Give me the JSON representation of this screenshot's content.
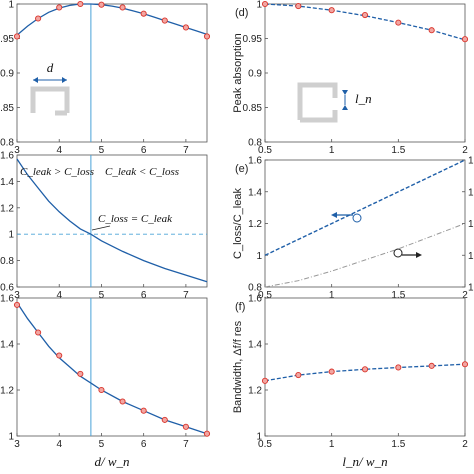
{
  "chart_data": [
    {
      "id": "a",
      "type": "line",
      "panel_label": "",
      "xlim": [
        3,
        7.5
      ],
      "ylim": [
        0.8,
        1.0
      ],
      "xticks": [
        "3",
        "4",
        "5",
        "6",
        "7"
      ],
      "yticks": [
        "0.8",
        "0.85",
        "0.9",
        "0.95",
        "1"
      ],
      "ylabel": "",
      "xlabel": "",
      "vline_x": 4.75,
      "curve": {
        "x": [
          3,
          3.25,
          3.5,
          3.75,
          4,
          4.25,
          4.5,
          4.75,
          5,
          5.25,
          5.5,
          5.75,
          6,
          6.25,
          6.5,
          6.75,
          7,
          7.25,
          7.5
        ],
        "y": [
          0.955,
          0.968,
          0.979,
          0.988,
          0.994,
          0.998,
          1.0,
          1.0,
          0.999,
          0.997,
          0.994,
          0.99,
          0.986,
          0.981,
          0.976,
          0.971,
          0.966,
          0.961,
          0.956
        ]
      },
      "markers": {
        "x": [
          3,
          3.5,
          4,
          4.5,
          5,
          5.5,
          6,
          6.5,
          7,
          7.5
        ],
        "y": [
          0.953,
          0.979,
          0.995,
          1.0,
          0.999,
          0.995,
          0.986,
          0.976,
          0.966,
          0.953
        ]
      },
      "annotations": {
        "d": "d"
      }
    },
    {
      "id": "b",
      "type": "line",
      "panel_label": "",
      "xlim": [
        3,
        7.5
      ],
      "ylim": [
        0.6,
        1.6
      ],
      "xticks": [
        "3",
        "4",
        "5",
        "6",
        "7"
      ],
      "yticks": [
        "0.6",
        "0.8",
        "1",
        "1.2",
        "1.4",
        "1.6"
      ],
      "vline_x": 4.75,
      "hline_y": 1.0,
      "curve": {
        "x": [
          3,
          3.25,
          3.5,
          3.75,
          4,
          4.25,
          4.5,
          4.75,
          5,
          5.5,
          6,
          6.5,
          7,
          7.5
        ],
        "y": [
          1.57,
          1.45,
          1.35,
          1.25,
          1.17,
          1.1,
          1.04,
          1.0,
          0.95,
          0.87,
          0.8,
          0.74,
          0.69,
          0.64
        ]
      },
      "annotations": {
        "left": "C_leak > C_loss",
        "right": "C_leak < C_loss",
        "mid": "C_loss = C_leak"
      }
    },
    {
      "id": "c",
      "type": "line",
      "panel_label": "",
      "xlim": [
        3,
        7.5
      ],
      "ylim": [
        1.0,
        1.6
      ],
      "xticks": [
        "3",
        "4",
        "5",
        "6",
        "7"
      ],
      "yticks": [
        "1",
        "1.2",
        "1.4",
        "1.6"
      ],
      "xlabel": "d/ w_n",
      "vline_x": 4.75,
      "curve": {
        "x": [
          3,
          3.25,
          3.5,
          3.75,
          4,
          4.25,
          4.5,
          4.75,
          5,
          5.5,
          6,
          6.5,
          7,
          7.5
        ],
        "y": [
          1.58,
          1.51,
          1.45,
          1.39,
          1.34,
          1.3,
          1.26,
          1.23,
          1.2,
          1.15,
          1.11,
          1.07,
          1.04,
          1.01
        ]
      },
      "markers": {
        "x": [
          3,
          3.5,
          4,
          4.5,
          5,
          5.5,
          6,
          6.5,
          7,
          7.5
        ],
        "y": [
          1.57,
          1.45,
          1.35,
          1.27,
          1.2,
          1.15,
          1.11,
          1.07,
          1.04,
          1.01
        ]
      }
    },
    {
      "id": "d",
      "type": "line",
      "panel_label": "(d)",
      "xlim": [
        0.5,
        2.0
      ],
      "ylim": [
        0.8,
        1.0
      ],
      "xticks": [
        "0.5",
        "1",
        "1.5",
        "2"
      ],
      "yticks": [
        "0.8",
        "0.85",
        "0.9",
        "0.95",
        "1"
      ],
      "ylabel": "Peak absorption",
      "curve": {
        "x": [
          0.5,
          0.75,
          1.0,
          1.25,
          1.5,
          1.75,
          2.0
        ],
        "y": [
          1.0,
          0.997,
          0.991,
          0.983,
          0.973,
          0.962,
          0.948
        ]
      },
      "markers": {
        "x": [
          0.5,
          0.75,
          1.0,
          1.25,
          1.5,
          1.75,
          2.0
        ],
        "y": [
          1.0,
          0.997,
          0.991,
          0.984,
          0.973,
          0.962,
          0.949
        ]
      },
      "annotations": {
        "ln": "l_n"
      }
    },
    {
      "id": "e",
      "type": "line",
      "panel_label": "(e)",
      "xlim": [
        0.5,
        2.0
      ],
      "ylim": [
        0.8,
        1.6
      ],
      "xticks": [
        "0.5",
        "1",
        "1.5",
        "2"
      ],
      "yticks": [
        "0.8",
        "1",
        "1.2",
        "1.4",
        "1.6"
      ],
      "right_yticks": [
        "1",
        "1",
        "1",
        "1",
        "1"
      ],
      "ylabel": "C_loss/C_leak",
      "series": [
        {
          "style": "dashed-blue",
          "x": [
            0.5,
            2.0
          ],
          "y": [
            1.0,
            1.6
          ]
        },
        {
          "style": "dashdot-gray",
          "x": [
            0.5,
            0.75,
            1.0,
            1.25,
            1.5,
            1.75,
            2.0
          ],
          "y": [
            0.8,
            0.84,
            0.9,
            0.97,
            1.04,
            1.12,
            1.2
          ]
        }
      ]
    },
    {
      "id": "f",
      "type": "line",
      "panel_label": "(f)",
      "xlim": [
        0.5,
        2.0
      ],
      "ylim": [
        1.0,
        1.6
      ],
      "xticks": [
        "0.5",
        "1",
        "1.5",
        "2"
      ],
      "yticks": [
        "1",
        "1.2",
        "1.4",
        "1.6"
      ],
      "ylabel": "Bandwidth, Δf/f res",
      "xlabel": "l_n/ w_n",
      "curve": {
        "x": [
          0.5,
          0.75,
          1.0,
          1.25,
          1.5,
          1.75,
          2.0
        ],
        "y": [
          1.24,
          1.265,
          1.28,
          1.29,
          1.298,
          1.305,
          1.312
        ]
      },
      "markers": {
        "x": [
          0.5,
          0.75,
          1.0,
          1.25,
          1.5,
          1.75,
          2.0
        ],
        "y": [
          1.24,
          1.265,
          1.28,
          1.29,
          1.298,
          1.305,
          1.312
        ]
      }
    }
  ]
}
